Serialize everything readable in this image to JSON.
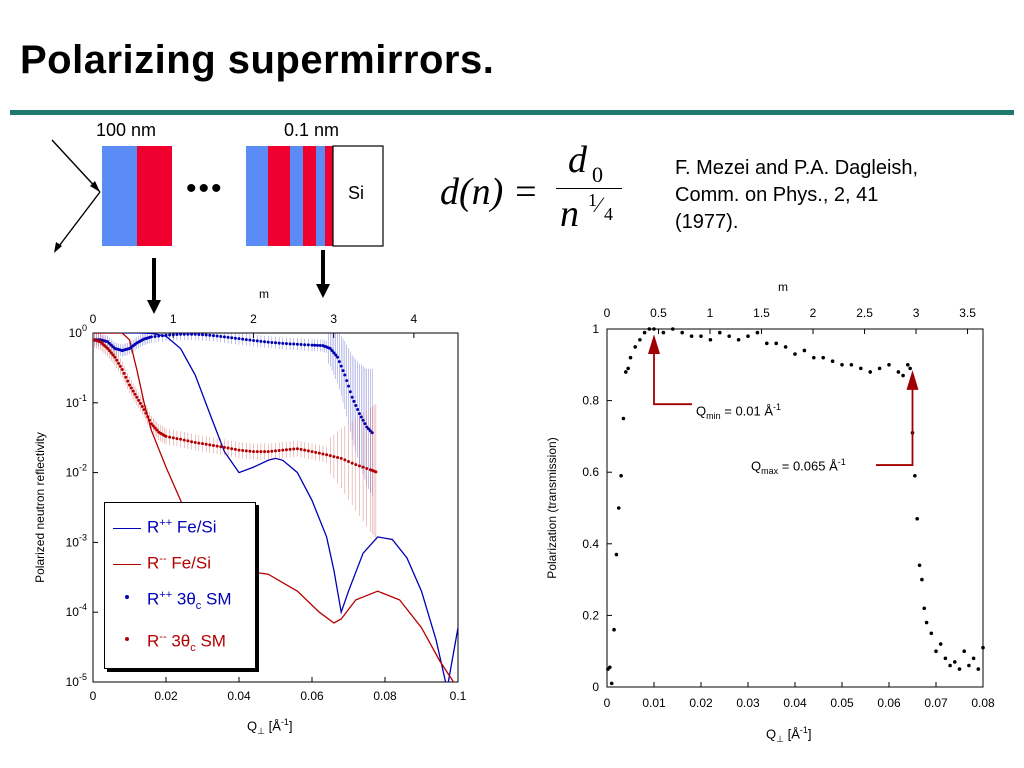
{
  "title": "Polarizing supermirrors.",
  "schematic": {
    "label_100nm": "100 nm",
    "label_01nm": "0.1 nm",
    "ellipsis": "•••",
    "substrate": "Si",
    "colors": {
      "blue": "#5b8cf5",
      "red": "#f0002e"
    }
  },
  "formula": {
    "lhs": "d(n) =",
    "numerator": "d",
    "numerator_sub": "0",
    "denominator": "n",
    "exp_num": "1",
    "exp_den": "4"
  },
  "reference": {
    "line1": "F. Mezei and P.A. Dagleish,",
    "line2": "Comm. on Phys., 2, 41",
    "line3": "(1977)."
  },
  "left_chart_labels": {
    "top_axis_title": "m",
    "top_ticks": [
      "0",
      "1",
      "2",
      "3",
      "4"
    ],
    "y_ticks": [
      {
        "base": "10",
        "exp": "0"
      },
      {
        "base": "10",
        "exp": "-1"
      },
      {
        "base": "10",
        "exp": "-2"
      },
      {
        "base": "10",
        "exp": "-3"
      },
      {
        "base": "10",
        "exp": "-4"
      },
      {
        "base": "10",
        "exp": "-5"
      }
    ],
    "x_ticks": [
      "0",
      "0.02",
      "0.04",
      "0.06",
      "0.08",
      "0.1"
    ],
    "ylabel": "Polarized neutron reflectivity",
    "xlabel_main": "Q",
    "xlabel_sym": "⊥",
    "xlabel_unit": "[Å",
    "xlabel_exp": "-1",
    "xlabel_close": "]"
  },
  "legend": [
    {
      "text": "R",
      "sup": "++",
      "rest": " Fe/Si",
      "kind": "line",
      "color": "#0000b4"
    },
    {
      "text": "R",
      "sup": "--",
      "rest": " Fe/Si",
      "kind": "line",
      "color": "#b40000"
    },
    {
      "text": "R",
      "sup": "++",
      "rest": " 3θ",
      "sub": "c",
      "rest2": " SM",
      "kind": "dot",
      "color": "#0000b4"
    },
    {
      "text": "R",
      "sup": "--",
      "rest": " 3θ",
      "sub": "c",
      "rest2": " SM",
      "kind": "dot",
      "color": "#b40000"
    }
  ],
  "right_chart_labels": {
    "top_axis_title": "m",
    "top_ticks": [
      "0",
      "0.5",
      "1",
      "1.5",
      "2",
      "2.5",
      "3",
      "3.5"
    ],
    "y_ticks": [
      "0",
      "0.2",
      "0.4",
      "0.6",
      "0.8",
      "1"
    ],
    "x_ticks": [
      "0",
      "0.01",
      "0.02",
      "0.03",
      "0.04",
      "0.05",
      "0.06",
      "0.07",
      "0.08"
    ],
    "ylabel": "Polarization (transmission)",
    "xlabel_main": "Q",
    "xlabel_sym": "⊥",
    "xlabel_unit": "[Å",
    "xlabel_exp": "-1",
    "xlabel_close": "]",
    "qmin": {
      "pre": "Q",
      "sub": "min",
      "post": " = 0.01 Å",
      "exp": "-1"
    },
    "qmax": {
      "pre": "Q",
      "sub": "max",
      "post": " = 0.065 Å",
      "exp": "-1"
    }
  },
  "chart_data": [
    {
      "type": "line",
      "ylabel": "Polarized neutron reflectivity",
      "yscale": "log",
      "xlim": [
        0,
        0.1
      ],
      "ylim": [
        1e-05,
        1
      ],
      "x2lim": [
        0,
        4.55
      ],
      "x2label": "m",
      "series": [
        {
          "name": "R++ Fe/Si",
          "style": "line",
          "color": "#0000b4",
          "x": [
            0,
            0.004,
            0.008,
            0.012,
            0.016,
            0.02,
            0.024,
            0.028,
            0.032,
            0.036,
            0.04,
            0.044,
            0.048,
            0.05,
            0.052,
            0.056,
            0.06,
            0.064,
            0.066,
            0.068,
            0.07,
            0.074,
            0.078,
            0.082,
            0.086,
            0.09,
            0.094,
            0.097,
            0.1
          ],
          "y": [
            1,
            1,
            1,
            1,
            0.99,
            0.9,
            0.6,
            0.25,
            0.07,
            0.02,
            0.01,
            0.012,
            0.015,
            0.016,
            0.015,
            0.01,
            0.004,
            0.0012,
            0.0004,
            0.0001,
            0.0002,
            0.0007,
            0.0012,
            0.0011,
            0.0006,
            0.0002,
            4e-05,
            8e-06,
            6e-05
          ]
        },
        {
          "name": "R-- Fe/Si",
          "style": "line",
          "color": "#b40000",
          "x": [
            0,
            0.005,
            0.008,
            0.01,
            0.012,
            0.014,
            0.016,
            0.02,
            0.024,
            0.028,
            0.032,
            0.036,
            0.04,
            0.048,
            0.056,
            0.062,
            0.066,
            0.068,
            0.072,
            0.078,
            0.084,
            0.09,
            0.095,
            0.1
          ],
          "y": [
            1,
            1,
            1,
            0.8,
            0.3,
            0.1,
            0.04,
            0.012,
            0.004,
            0.0015,
            0.0007,
            0.00045,
            0.0004,
            0.00035,
            0.0002,
            0.0001,
            7e-05,
            8e-05,
            0.00015,
            0.0002,
            0.00015,
            6e-05,
            2e-05,
            8e-06
          ]
        },
        {
          "name": "R++ 3θc SM",
          "style": "dots",
          "color": "#0000b4",
          "x": [
            0,
            0.002,
            0.004,
            0.006,
            0.008,
            0.01,
            0.012,
            0.014,
            0.016,
            0.02,
            0.024,
            0.028,
            0.032,
            0.036,
            0.04,
            0.044,
            0.048,
            0.052,
            0.056,
            0.06,
            0.063,
            0.065,
            0.067,
            0.069,
            0.071,
            0.073,
            0.075,
            0.077
          ],
          "y": [
            0.8,
            0.8,
            0.75,
            0.6,
            0.56,
            0.6,
            0.72,
            0.82,
            0.88,
            0.93,
            0.96,
            0.96,
            0.93,
            0.88,
            0.83,
            0.78,
            0.74,
            0.71,
            0.69,
            0.67,
            0.66,
            0.6,
            0.45,
            0.25,
            0.12,
            0.07,
            0.045,
            0.035
          ]
        },
        {
          "name": "R-- 3θc SM",
          "style": "dots",
          "color": "#b40000",
          "x": [
            0,
            0.002,
            0.004,
            0.006,
            0.008,
            0.01,
            0.012,
            0.014,
            0.016,
            0.018,
            0.02,
            0.024,
            0.028,
            0.032,
            0.036,
            0.04,
            0.044,
            0.048,
            0.052,
            0.056,
            0.06,
            0.064,
            0.068,
            0.072,
            0.076,
            0.078
          ],
          "y": [
            0.8,
            0.75,
            0.6,
            0.45,
            0.3,
            0.18,
            0.12,
            0.08,
            0.05,
            0.038,
            0.033,
            0.03,
            0.027,
            0.025,
            0.023,
            0.021,
            0.02,
            0.02,
            0.021,
            0.022,
            0.02,
            0.018,
            0.016,
            0.013,
            0.011,
            0.01
          ]
        }
      ]
    },
    {
      "type": "scatter",
      "ylabel": "Polarization (transmission)",
      "xlim": [
        0,
        0.08
      ],
      "ylim": [
        0,
        1
      ],
      "x2lim": [
        0,
        3.65
      ],
      "x2label": "m",
      "series": [
        {
          "color": "#000000",
          "x": [
            0.0002,
            0.0006,
            0.001,
            0.0015,
            0.002,
            0.0025,
            0.003,
            0.0035,
            0.004,
            0.0045,
            0.005,
            0.006,
            0.007,
            0.008,
            0.009,
            0.01,
            0.012,
            0.014,
            0.016,
            0.018,
            0.02,
            0.022,
            0.024,
            0.026,
            0.028,
            0.03,
            0.032,
            0.034,
            0.036,
            0.038,
            0.04,
            0.042,
            0.044,
            0.046,
            0.048,
            0.05,
            0.052,
            0.054,
            0.056,
            0.058,
            0.06,
            0.062,
            0.063,
            0.064,
            0.0645,
            0.065,
            0.0655,
            0.066,
            0.0665,
            0.067,
            0.0675,
            0.068,
            0.069,
            0.07,
            0.071,
            0.072,
            0.073,
            0.074,
            0.075,
            0.076,
            0.077,
            0.078,
            0.079,
            0.08
          ],
          "y": [
            0.05,
            0.055,
            0.01,
            0.16,
            0.37,
            0.5,
            0.59,
            0.75,
            0.88,
            0.89,
            0.92,
            0.95,
            0.97,
            0.99,
            1.0,
            1.0,
            0.99,
            1.0,
            0.99,
            0.98,
            0.98,
            0.97,
            0.99,
            0.98,
            0.97,
            0.98,
            0.99,
            0.96,
            0.96,
            0.95,
            0.93,
            0.94,
            0.92,
            0.92,
            0.91,
            0.9,
            0.9,
            0.89,
            0.88,
            0.89,
            0.9,
            0.88,
            0.87,
            0.9,
            0.89,
            0.71,
            0.59,
            0.47,
            0.34,
            0.3,
            0.22,
            0.18,
            0.15,
            0.1,
            0.12,
            0.08,
            0.06,
            0.07,
            0.05,
            0.1,
            0.06,
            0.08,
            0.05,
            0.11
          ]
        }
      ]
    }
  ]
}
